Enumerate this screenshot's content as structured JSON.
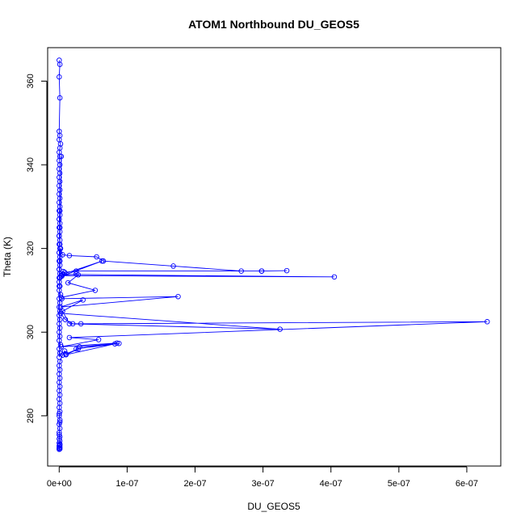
{
  "chart_data": {
    "type": "line",
    "title": "ATOM1 Northbound DU_GEOS5",
    "xlabel": "DU_GEOS5",
    "ylabel": "Theta (K)",
    "xlim": [
      -1.7e-08,
      6.5e-07
    ],
    "ylim": [
      268,
      368
    ],
    "x_ticks": [
      {
        "value": 0,
        "label": "0e+00"
      },
      {
        "value": 1e-07,
        "label": "1e-07"
      },
      {
        "value": 2e-07,
        "label": "2e-07"
      },
      {
        "value": 3e-07,
        "label": "3e-07"
      },
      {
        "value": 4e-07,
        "label": "4e-07"
      },
      {
        "value": 5e-07,
        "label": "5e-07"
      },
      {
        "value": 6e-07,
        "label": "6e-07"
      }
    ],
    "y_ticks": [
      {
        "value": 280,
        "label": "280"
      },
      {
        "value": 300,
        "label": "300"
      },
      {
        "value": 320,
        "label": "320"
      },
      {
        "value": 340,
        "label": "340"
      },
      {
        "value": 360,
        "label": "360"
      }
    ],
    "grid": false,
    "series_color": "#0000ff",
    "series": [
      {
        "x": [
          0.0,
          1e-09,
          0.0,
          1e-09,
          0.0,
          1e-09,
          0.0,
          2e-09,
          1e-09,
          0.0,
          1e-09,
          0.0,
          1e-09,
          0.0,
          1e-09,
          0.0,
          1e-09,
          0.0,
          1e-09,
          0.0,
          1e-09,
          0.0,
          1e-09,
          0.0,
          1e-09,
          0.0,
          1e-09,
          0.0,
          1e-09,
          0.0,
          1e-09,
          0.0,
          1e-09,
          0.0,
          1e-09,
          0.0,
          1e-09,
          0.0,
          1e-09,
          0.0,
          3e-09,
          0.0,
          1e-09,
          0.0,
          2e-09,
          0.0,
          1e-09,
          0.0,
          1e-09,
          0.0,
          1e-09,
          0.0,
          1e-09,
          0.0,
          1e-09,
          0.0,
          2e-09,
          0.0,
          1e-09,
          0.0,
          1e-09,
          0.0,
          1e-09,
          0.0,
          1e-09,
          0.0,
          1e-09,
          0.0,
          1e-09,
          0.0,
          2e-09,
          5e-09,
          1.5e-08,
          5.5e-08,
          6.5e-08,
          1.68e-07,
          2.68e-07,
          2.98e-07,
          3.35e-07,
          2.98e-07,
          2.5e-08,
          8e-09,
          6e-09,
          4e-09,
          6.3e-08,
          5e-09,
          4.05e-07,
          3e-09,
          2.5e-08,
          2.8e-08,
          1.3e-08,
          5.3e-08,
          3e-09,
          4e-09,
          1.75e-07,
          2e-09,
          3.5e-08,
          5e-09,
          1.5e-08,
          3.25e-07,
          2e-09,
          9e-09,
          2e-08,
          3.2e-08,
          6.3e-07,
          1.5e-08,
          5.8e-08,
          3e-09,
          8.5e-08,
          2.5e-08,
          8.8e-08,
          3e-08,
          8.2e-08,
          1e-08,
          2.8e-08,
          1e-08,
          8e-09,
          5e-09,
          1e-09,
          0.0,
          1e-09,
          0.0,
          1e-09,
          0.0,
          1e-09,
          0.0,
          1e-09,
          0.0,
          1e-09,
          0.0,
          1e-09,
          0.0,
          1e-09,
          0.0,
          1e-09,
          0.0,
          1e-09,
          0.0,
          1e-09,
          0.0,
          1e-09,
          0.0,
          1e-09,
          0.0,
          1e-09,
          0.0,
          1e-09,
          0.0,
          1e-09,
          0.0
        ],
        "y": [
          365,
          364,
          361,
          356,
          348,
          347,
          346,
          345,
          344,
          343,
          342,
          341,
          340,
          339,
          338,
          337,
          336,
          335,
          334,
          333,
          332,
          331,
          330,
          329,
          328,
          327,
          326,
          325,
          324,
          323,
          322,
          321,
          320,
          319,
          318,
          317,
          316,
          315,
          314,
          313,
          342,
          312,
          311,
          310,
          309,
          308,
          307,
          306,
          305,
          304,
          303,
          302,
          301,
          300,
          299,
          298,
          297,
          296,
          295,
          294,
          329,
          327,
          325,
          323,
          321,
          319,
          317,
          315,
          313,
          311,
          320,
          318.5,
          318.3,
          318.0,
          317.0,
          315.8,
          314.6,
          314.6,
          314.7,
          314.6,
          314.6,
          314.3,
          314.5,
          313.4,
          317.0,
          313.8,
          313.2,
          313.5,
          313.9,
          313.7,
          311.8,
          310.0,
          308.3,
          308.0,
          308.5,
          306.0,
          307.7,
          305.0,
          302.0,
          300.7,
          304.5,
          303.0,
          302.0,
          302.0,
          302.5,
          298.7,
          298.2,
          296.5,
          297.4,
          296.0,
          297.3,
          296.5,
          297.2,
          294.6,
          296.0,
          294.8,
          295.5,
          294.5,
          293.0,
          292.0,
          291.0,
          290.0,
          289.0,
          288.0,
          287.0,
          286.0,
          285.0,
          284.0,
          283.0,
          282.0,
          281.0,
          280.0,
          279.0,
          278.0,
          277.0,
          276.0,
          275.0,
          274.5,
          274.0,
          273.5,
          273.0,
          272.8,
          272.5,
          272.3,
          272.1,
          272.0,
          273.2,
          275.5,
          278.5,
          280.5
        ]
      }
    ]
  }
}
